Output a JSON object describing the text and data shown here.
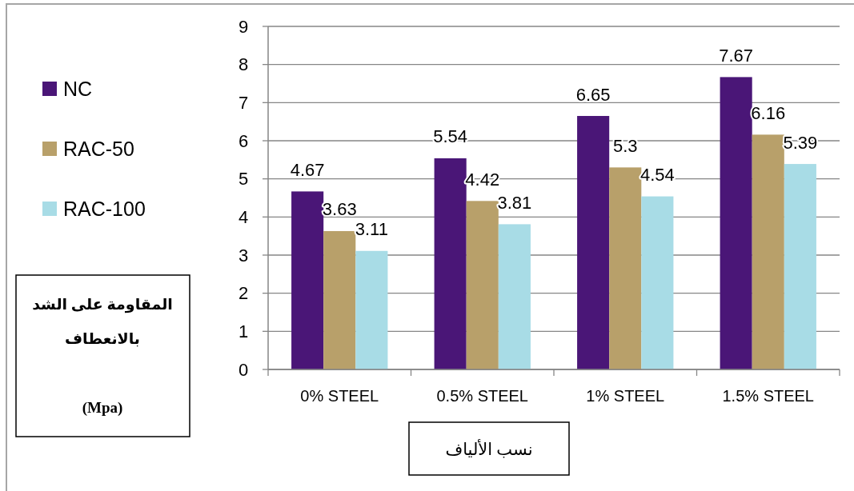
{
  "chart_data": {
    "type": "bar",
    "categories": [
      "0% STEEL",
      "0.5% STEEL",
      "1% STEEL",
      "1.5% STEEL"
    ],
    "series": [
      {
        "name": "NC",
        "color": "#4a1677",
        "values": [
          4.67,
          5.54,
          6.65,
          7.67
        ]
      },
      {
        "name": "RAC-50",
        "color": "#b8a06a",
        "values": [
          3.63,
          4.42,
          5.3,
          6.16
        ]
      },
      {
        "name": "RAC-100",
        "color": "#a8dce6",
        "values": [
          3.11,
          3.81,
          4.54,
          5.39
        ]
      }
    ],
    "ylim": [
      0,
      9
    ],
    "yticks": [
      0,
      1,
      2,
      3,
      4,
      5,
      6,
      7,
      8,
      9
    ],
    "xlabel": "نسب الألياف",
    "ylabel": "المقاومة على الشد\nبالانعطاف\n\n(Mpa)",
    "grid": "y",
    "legend": "left",
    "data_labels": true
  }
}
